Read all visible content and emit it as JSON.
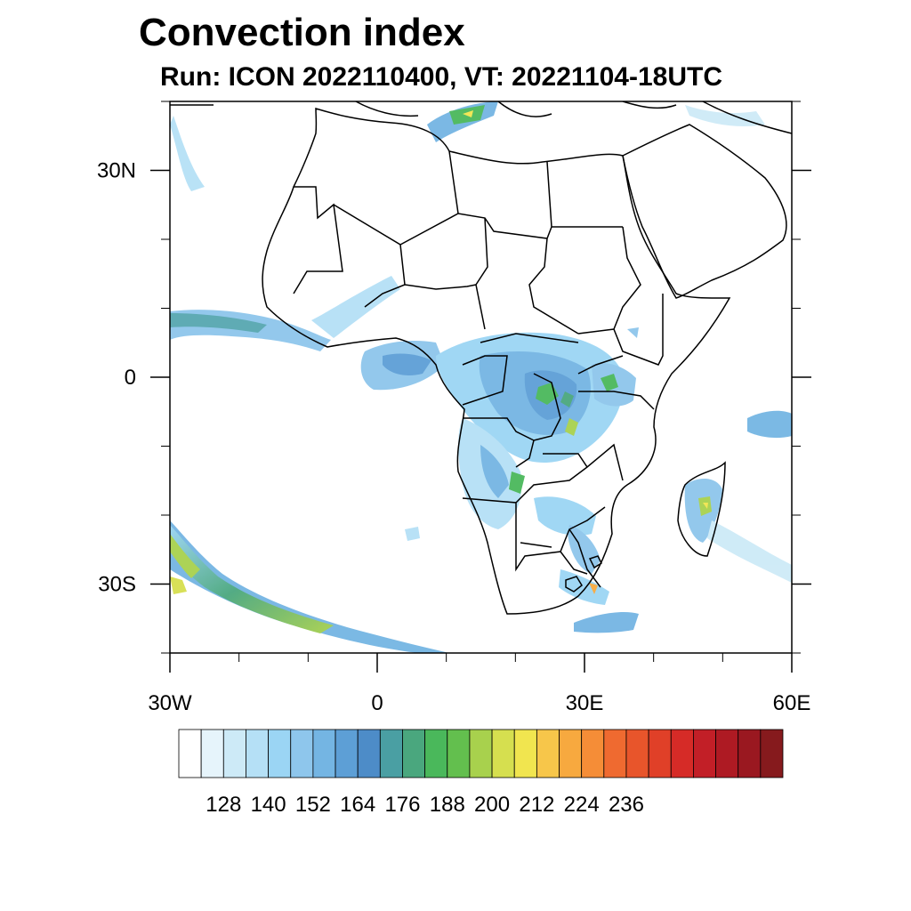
{
  "title": "Convection index",
  "subtitle": "Run: ICON 2022110400,  VT: 20221104-18UTC",
  "map": {
    "lon_range": [
      -30,
      60
    ],
    "lat_range": [
      -40,
      40
    ],
    "lon_ticks": [
      {
        "value": -30,
        "label": "30W"
      },
      {
        "value": 0,
        "label": "0"
      },
      {
        "value": 30,
        "label": "30E"
      },
      {
        "value": 60,
        "label": "60E"
      }
    ],
    "lat_ticks": [
      {
        "value": 30,
        "label": "30N"
      },
      {
        "value": 0,
        "label": "0"
      },
      {
        "value": -30,
        "label": "30S"
      }
    ]
  },
  "colorbar": {
    "label_values": [
      "128",
      "140",
      "152",
      "164",
      "176",
      "188",
      "200",
      "212",
      "224",
      "236"
    ],
    "colors": [
      "#ffffff",
      "#e6f4fb",
      "#cdeaf7",
      "#b5e0f6",
      "#9bd5f4",
      "#8ec6ec",
      "#74b5e3",
      "#5d9fd6",
      "#4d8cc8",
      "#4a9fa3",
      "#4aa77e",
      "#4ab85b",
      "#63bf4e",
      "#a8d14d",
      "#d6df4f",
      "#f1e54f",
      "#f7c64a",
      "#f7a93f",
      "#f58d37",
      "#ef6a30",
      "#e8552b",
      "#e04028",
      "#d62b27",
      "#c21f27",
      "#ae1a23",
      "#9a1820",
      "#861a1d"
    ]
  }
}
